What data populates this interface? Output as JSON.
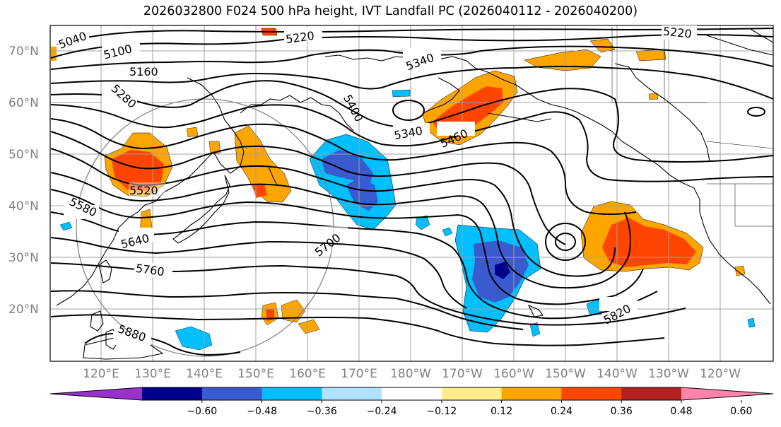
{
  "title": "2026032800 F024 500 hPa height, IVT Landfall PC (2026040112 - 2026040200)",
  "map": {
    "lat_labels": [
      "70°N",
      "60°N",
      "50°N",
      "40°N",
      "30°N",
      "20°N"
    ],
    "lon_labels": [
      "120°E",
      "130°E",
      "140°E",
      "150°E",
      "160°E",
      "170°E",
      "180°W",
      "170°W",
      "160°W",
      "150°W",
      "140°W",
      "130°W",
      "120°W"
    ],
    "contour_labels": [
      "5040",
      "5100",
      "5160",
      "5220",
      "5220",
      "5280",
      "5340",
      "5340",
      "5400",
      "5460",
      "5520",
      "5580",
      "5640",
      "5700",
      "5760",
      "5820",
      "5880"
    ]
  },
  "colorbar": {
    "ticks": [
      "−0.60",
      "−0.48",
      "−0.36",
      "−0.24",
      "−0.12",
      "0.12",
      "0.24",
      "0.36",
      "0.48",
      "0.60"
    ],
    "colors": [
      "#9932cc",
      "#00008b",
      "#3a5bcf",
      "#00bfff",
      "#b0e2ff",
      "#ffffff",
      "#ffec8b",
      "#ffa500",
      "#ff4500",
      "#b22222",
      "#ff82ab"
    ]
  }
}
